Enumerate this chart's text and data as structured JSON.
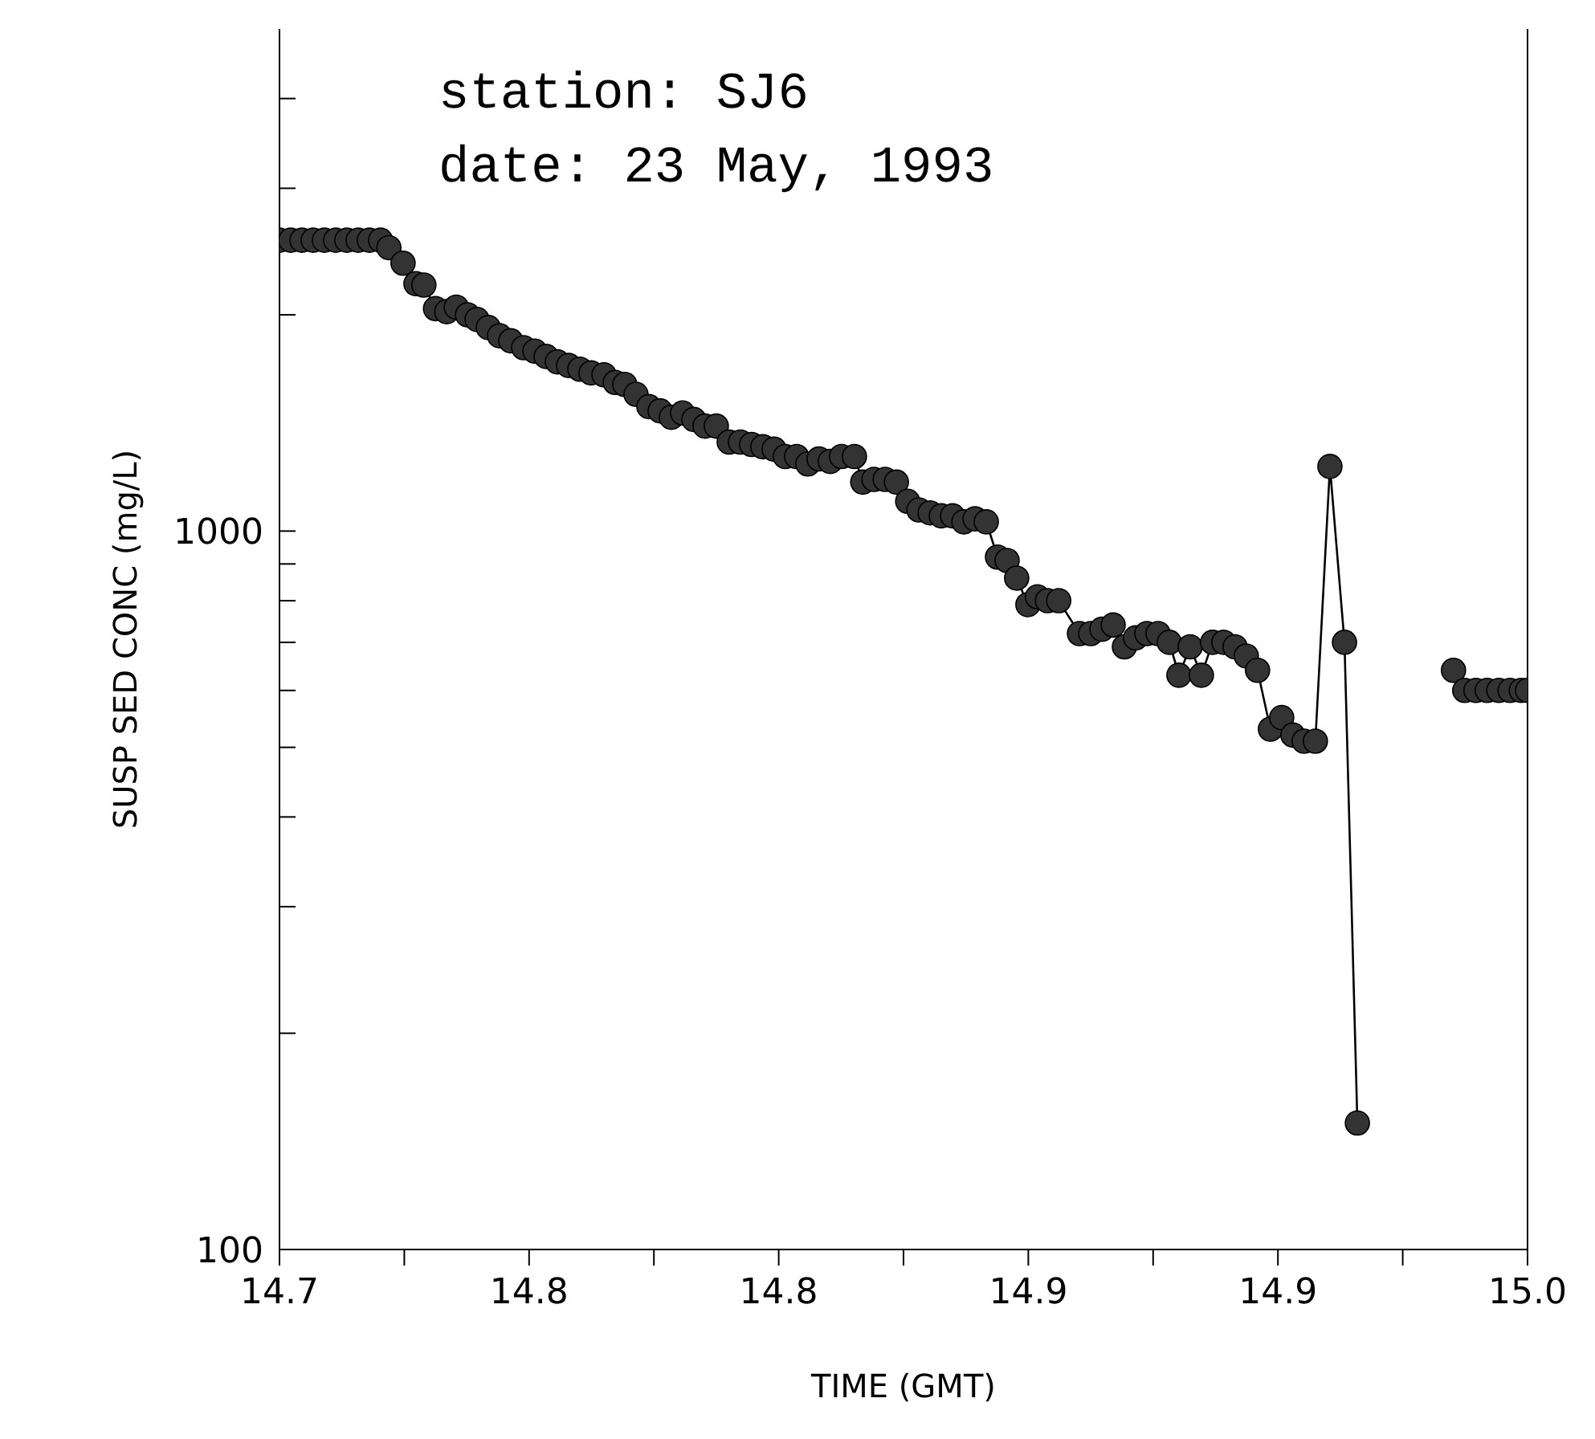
{
  "chart_data": {
    "type": "line",
    "xlabel": "TIME (GMT)",
    "ylabel": "SUSP SED CONC (mg/L)",
    "annotations": [
      "station: SJ6",
      "date: 23 May, 1993"
    ],
    "log": "y",
    "marker": "circle",
    "line_style": "solid",
    "xlim": [
      14.7,
      15.0
    ],
    "xticks": [
      {
        "value": 14.7,
        "label": "14.7"
      },
      {
        "value": 14.73,
        "label": null
      },
      {
        "value": 14.76,
        "label": "14.8"
      },
      {
        "value": 14.79,
        "label": null
      },
      {
        "value": 14.82,
        "label": "14.8"
      },
      {
        "value": 14.85,
        "label": null
      },
      {
        "value": 14.88,
        "label": "14.9"
      },
      {
        "value": 14.91,
        "label": null
      },
      {
        "value": 14.94,
        "label": "14.9"
      },
      {
        "value": 14.97,
        "label": null
      },
      {
        "value": 15.0,
        "label": "15.0"
      }
    ],
    "ylim": [
      100,
      5000
    ],
    "yticks": [
      100,
      {
        "value": 200,
        "label": null
      },
      {
        "value": 300,
        "label": null
      },
      {
        "value": 400,
        "label": null
      },
      {
        "value": 500,
        "label": null
      },
      {
        "value": 600,
        "label": null
      },
      {
        "value": 700,
        "label": null
      },
      {
        "value": 800,
        "label": null
      },
      {
        "value": 900,
        "label": null
      },
      1000,
      {
        "value": 2000,
        "label": null
      },
      {
        "value": 3000,
        "label": null
      },
      {
        "value": 4000,
        "label": null
      }
    ],
    "series": [
      {
        "color": "#333333",
        "x": [
          14.7,
          14.7027,
          14.7054,
          14.7081,
          14.7108,
          14.7135,
          14.7162,
          14.7189,
          14.7216,
          14.7243,
          14.7263,
          14.7297,
          14.7328,
          14.7347,
          14.7375,
          14.7402,
          14.7425,
          14.7452,
          14.7475,
          14.7502,
          14.7529,
          14.7556,
          14.7587,
          14.7614,
          14.7641,
          14.7668,
          14.7695,
          14.7722,
          14.7749,
          14.778,
          14.7807,
          14.783,
          14.7857,
          14.7888,
          14.7915,
          14.7942,
          14.7969,
          14.7996,
          14.8023,
          14.805,
          14.8081,
          14.8108,
          14.8135,
          14.8162,
          14.8189,
          14.8216,
          14.8243,
          14.827,
          14.8297,
          14.8324,
          14.8351,
          14.8382,
          14.8402,
          14.8429,
          14.8456,
          14.8483,
          14.851,
          14.8537,
          14.8564,
          14.8591,
          14.8618,
          14.8645,
          14.8672,
          14.8699,
          14.8726,
          14.8749,
          14.8772,
          14.8799,
          14.8822,
          14.8846,
          14.8873,
          14.8923,
          14.895,
          14.8977,
          14.9004,
          14.9031,
          14.9058,
          14.9085,
          14.9112,
          14.9139,
          14.9162,
          14.9189,
          14.9216,
          14.9243,
          14.927,
          14.9297,
          14.9324,
          14.9351,
          14.9382,
          14.9409,
          14.9436,
          14.9463,
          14.949,
          14.9525,
          14.956,
          14.9591,
          14.965,
          14.9822,
          14.9849,
          14.9876,
          14.9903,
          14.9931,
          14.9958,
          14.9985,
          15.0
        ],
        "values": [
          2540,
          2540,
          2540,
          2540,
          2540,
          2540,
          2540,
          2540,
          2540,
          2540,
          2480,
          2360,
          2210,
          2200,
          2040,
          2020,
          2050,
          2000,
          1970,
          1920,
          1870,
          1840,
          1800,
          1780,
          1750,
          1720,
          1700,
          1680,
          1660,
          1650,
          1610,
          1600,
          1550,
          1490,
          1470,
          1440,
          1460,
          1430,
          1400,
          1400,
          1330,
          1330,
          1320,
          1310,
          1300,
          1270,
          1270,
          1240,
          1260,
          1250,
          1270,
          1270,
          1170,
          1180,
          1180,
          1170,
          1100,
          1070,
          1060,
          1050,
          1050,
          1030,
          1040,
          1030,
          920,
          910,
          860,
          790,
          810,
          800,
          800,
          720,
          720,
          730,
          740,
          690,
          710,
          720,
          720,
          700,
          630,
          690,
          630,
          700,
          700,
          690,
          670,
          640,
          530,
          550,
          520,
          510,
          510,
          1230,
          700,
          150,
          null,
          640,
          600,
          600,
          600,
          600,
          600,
          600,
          600
        ]
      }
    ]
  }
}
